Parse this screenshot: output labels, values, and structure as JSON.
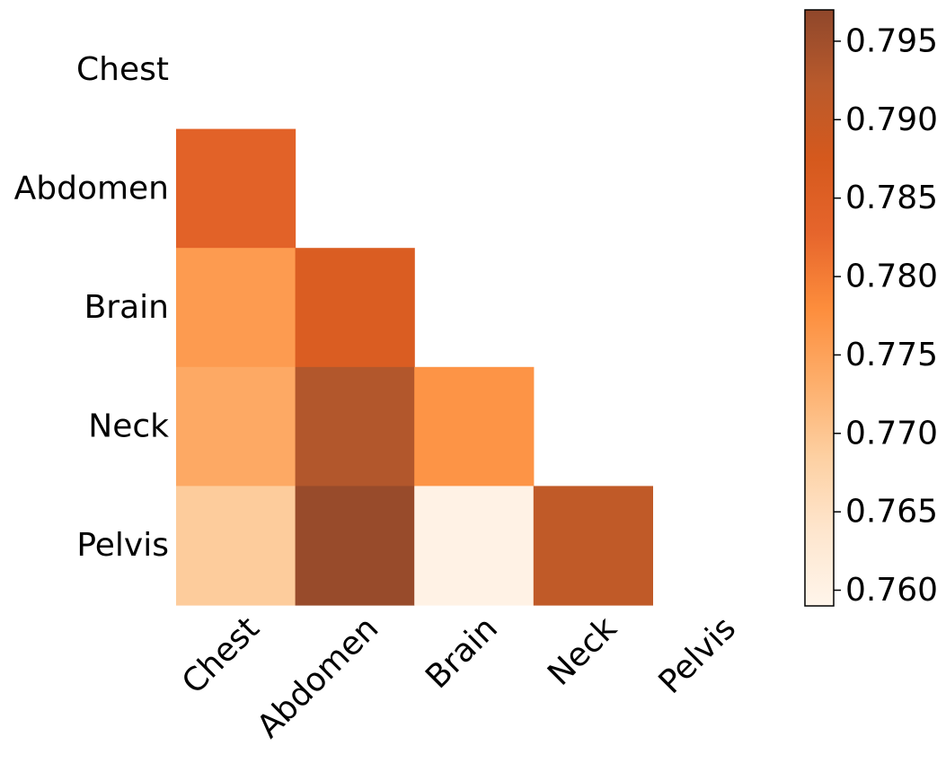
{
  "chart_data": {
    "type": "heatmap",
    "mask": "lower-triangle",
    "row_labels": [
      "Chest",
      "Abdomen",
      "Brain",
      "Neck",
      "Pelvis"
    ],
    "col_labels": [
      "Chest",
      "Abdomen",
      "Brain",
      "Neck",
      "Pelvis"
    ],
    "cells": [
      {
        "row": 1,
        "col": 0,
        "value": 0.784
      },
      {
        "row": 2,
        "col": 0,
        "value": 0.776
      },
      {
        "row": 2,
        "col": 1,
        "value": 0.786
      },
      {
        "row": 3,
        "col": 0,
        "value": 0.774
      },
      {
        "row": 3,
        "col": 1,
        "value": 0.793
      },
      {
        "row": 3,
        "col": 2,
        "value": 0.777
      },
      {
        "row": 4,
        "col": 0,
        "value": 0.769
      },
      {
        "row": 4,
        "col": 1,
        "value": 0.796
      },
      {
        "row": 4,
        "col": 2,
        "value": 0.76
      },
      {
        "row": 4,
        "col": 3,
        "value": 0.791
      }
    ],
    "colorbar": {
      "min": 0.759,
      "max": 0.797,
      "ticks": [
        0.76,
        0.765,
        0.77,
        0.775,
        0.78,
        0.785,
        0.79,
        0.795
      ],
      "tick_labels": [
        "0.760",
        "0.765",
        "0.770",
        "0.775",
        "0.780",
        "0.785",
        "0.790",
        "0.795"
      ]
    },
    "colormap": [
      "#fff5eb",
      "#fee6ce",
      "#fdd0a2",
      "#fdae6b",
      "#fd8d3c",
      "#e6652c",
      "#d5591d",
      "#b95a2c",
      "#8f472b"
    ],
    "grid": false,
    "legend": "colorbar-right"
  }
}
